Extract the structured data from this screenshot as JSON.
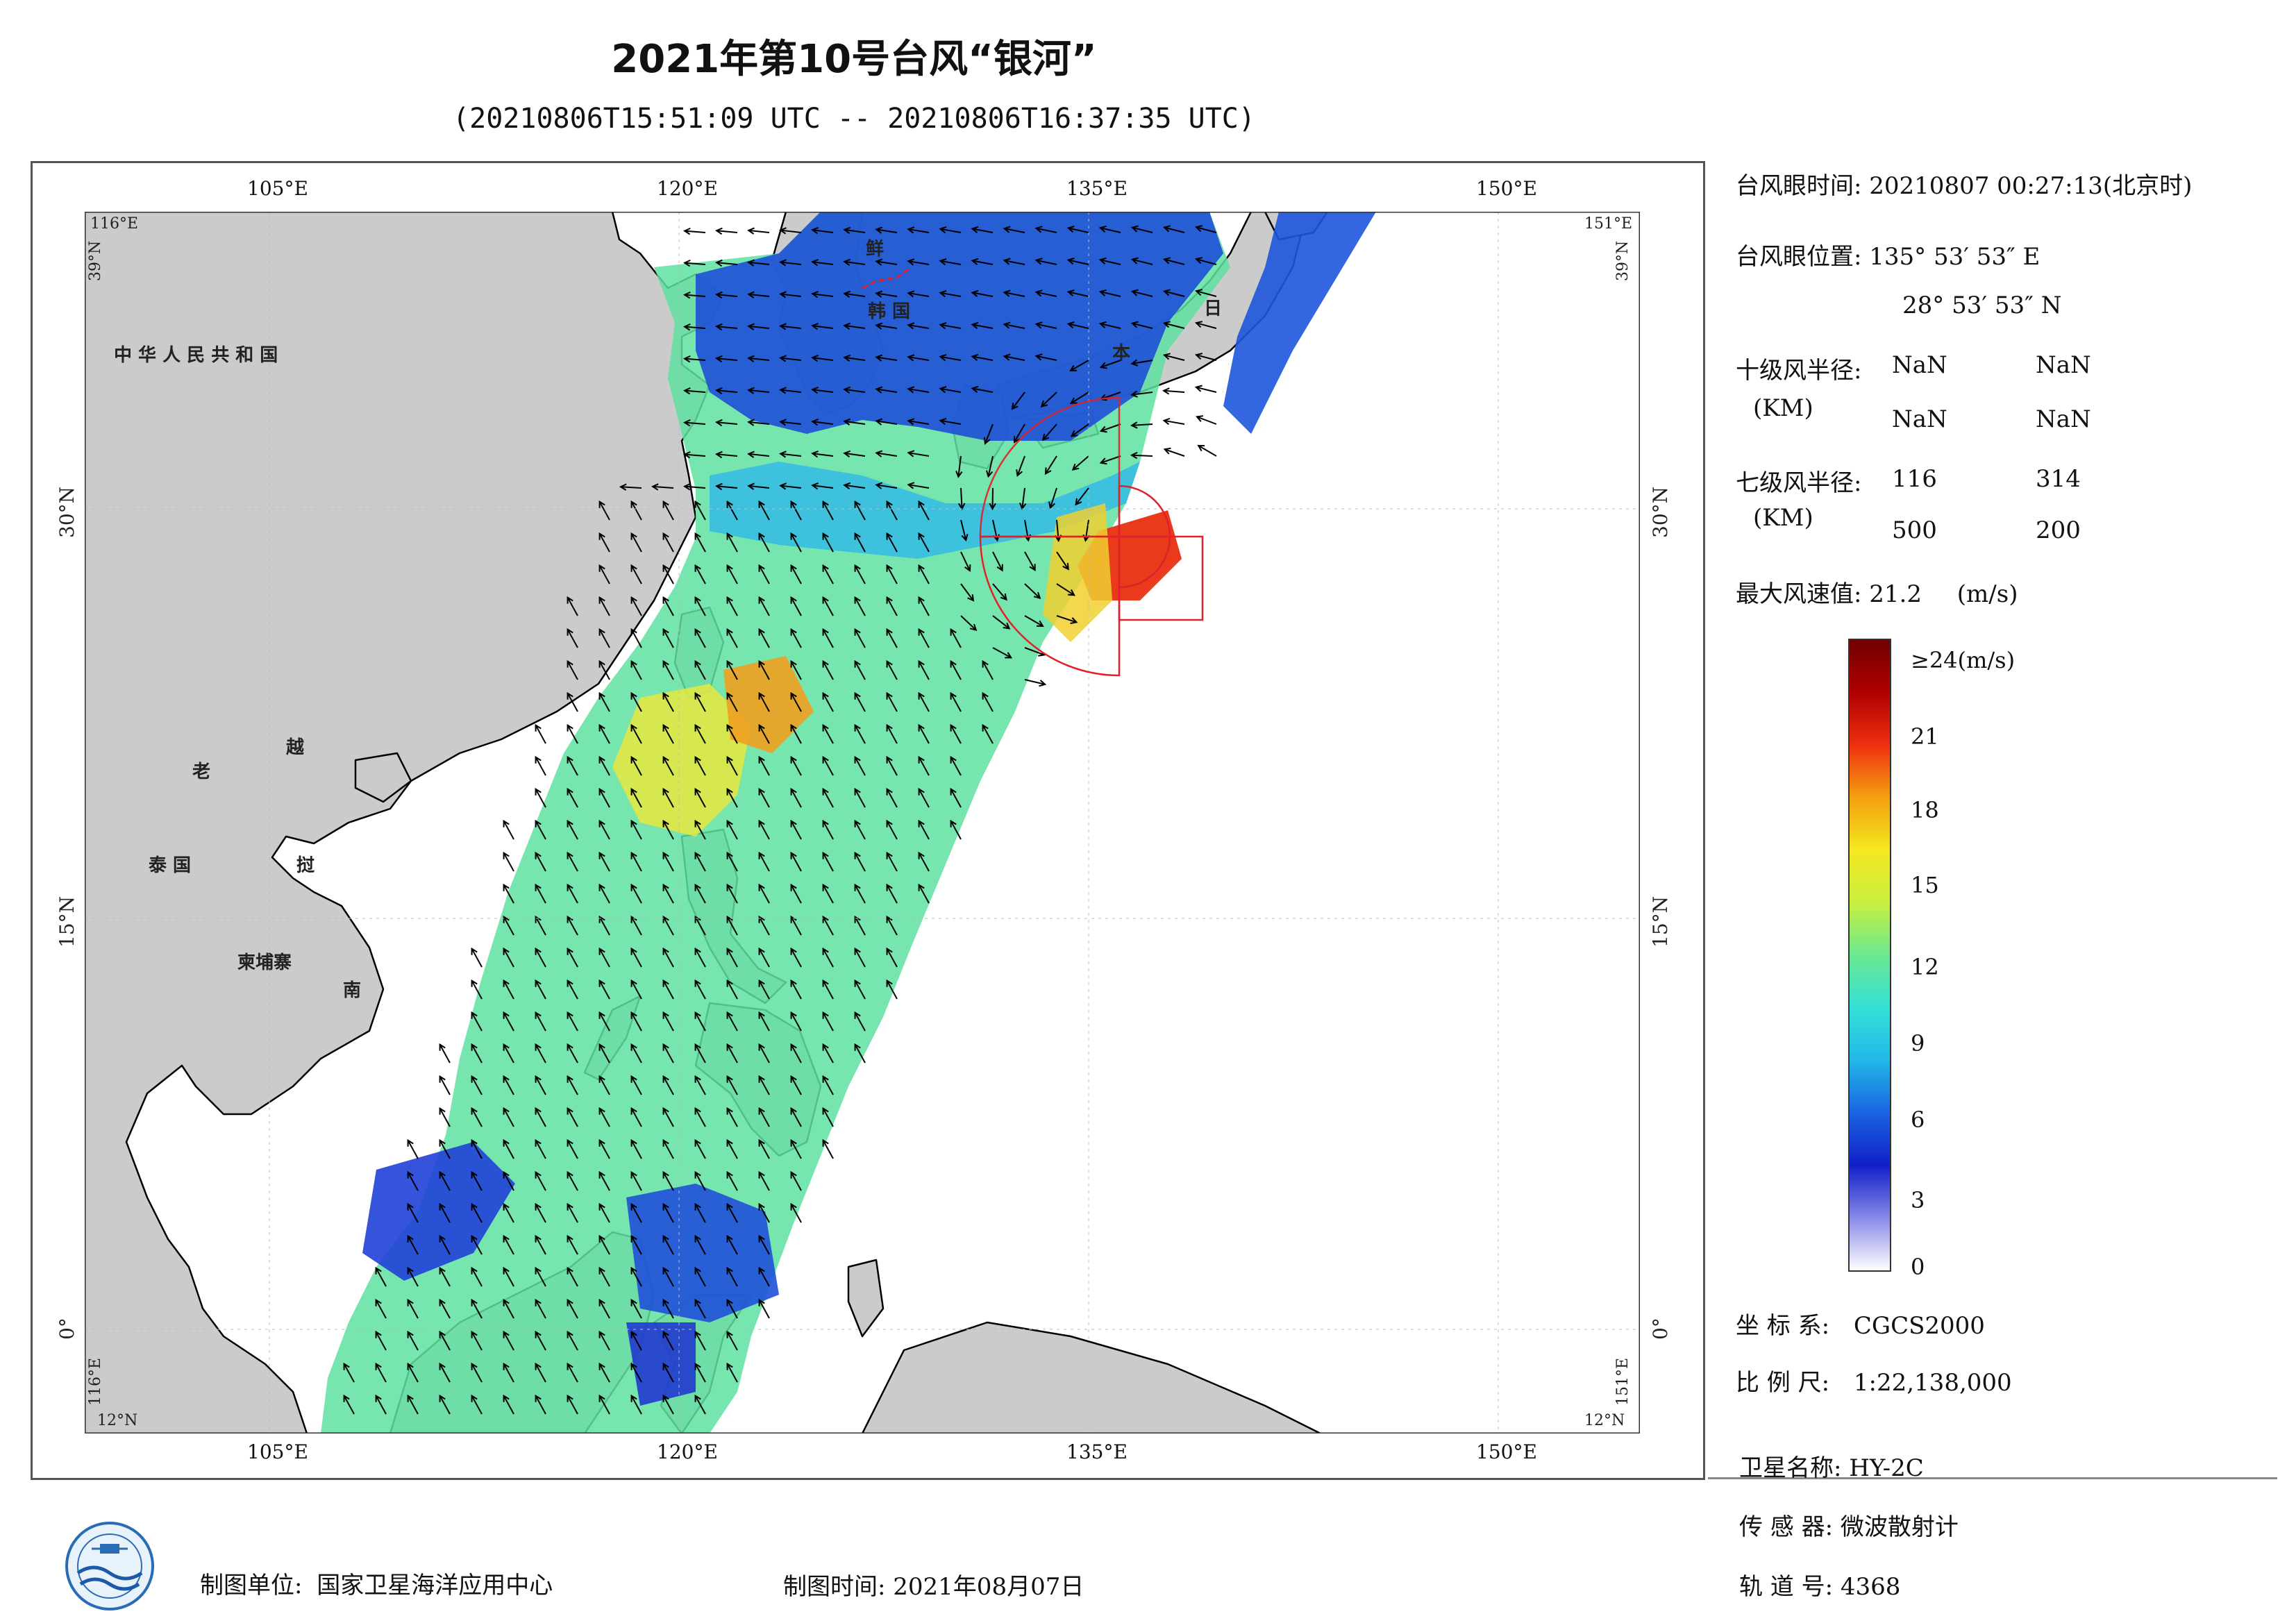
{
  "title": "2021年第10号台风“银河”",
  "subtitle": "(20210806T15:51:09 UTC -- 20210806T16:37:35 UTC)",
  "map": {
    "lon_ticks": [
      "105°E",
      "120°E",
      "135°E",
      "150°E"
    ],
    "lat_ticks_left": [
      "30°N",
      "15°N",
      "0°"
    ],
    "lat_ticks_right": [
      "30°N",
      "15°N",
      "0°"
    ],
    "corner_top_left_lon": "116°E",
    "corner_top_left_lat": "39°N",
    "corner_top_right_lon": "151°E",
    "corner_top_right_lat": "39°N",
    "corner_bottom_left_lon": "116°E",
    "corner_bottom_left_lat": "12°N",
    "corner_bottom_right_lon": "151°E",
    "corner_bottom_right_lat": "12°N",
    "place_labels": {
      "china": "中 华 人 民 共 和 国",
      "korea_n": "鲜",
      "korea_s": "韩 国",
      "japan_1": "日",
      "japan_2": "本",
      "laos": "老",
      "vietnam_1": "越",
      "vietnam_2": "挝",
      "thailand": "泰 国",
      "cambodia": "柬埔寨",
      "vietnam_3": "南"
    },
    "colors": {
      "land": "#cbcbcb",
      "sea": "#ffffff",
      "coast": "#000000",
      "wind_circle": "#e0202a"
    }
  },
  "typhoon_info": {
    "eye_time_label": "台风眼时间:",
    "eye_time_value": "20210807 00:27:13(北京时)",
    "eye_pos_label": "台风眼位置:",
    "eye_lon": "135° 53′ 53″ E",
    "eye_lat": "28° 53′ 53″ N",
    "r10_label": "十级风半径:",
    "r10_unit": "(KM)",
    "r10_values": [
      "NaN",
      "NaN",
      "NaN",
      "NaN"
    ],
    "r7_label": "七级风半径:",
    "r7_unit": "(KM)",
    "r7_values": [
      "116",
      "314",
      "500",
      "200"
    ],
    "max_wind_label": "最大风速值:",
    "max_wind_value": "21.2",
    "max_wind_unit": "(m/s)"
  },
  "colorbar": {
    "ticks": [
      "≥24(m/s)",
      "21",
      "18",
      "15",
      "12",
      "9",
      "6",
      "3",
      "0"
    ],
    "min": 0,
    "max": 24,
    "stops": [
      "#ffffff",
      "#8888e8",
      "#1020c8",
      "#1a64e0",
      "#22b8e8",
      "#34e0d8",
      "#6ae890",
      "#c8f040",
      "#f4e820",
      "#f4a010",
      "#ee3010",
      "#b00000",
      "#700000"
    ]
  },
  "meta": {
    "crs_label": "坐 标 系:",
    "crs_value": "CGCS2000",
    "scale_label": "比 例 尺:",
    "scale_value": "1:22,138,000",
    "sat_label": "卫星名称:",
    "sat_value": "HY-2C",
    "sensor_label": "传 感 器:",
    "sensor_value": "微波散射计",
    "orbit_label": "轨 道 号:",
    "orbit_value": "4368"
  },
  "footer": {
    "unit_label": "制图单位:",
    "unit_value": "国家卫星海洋应用中心",
    "time_label": "制图时间:",
    "time_value": "2021年08月07日"
  }
}
